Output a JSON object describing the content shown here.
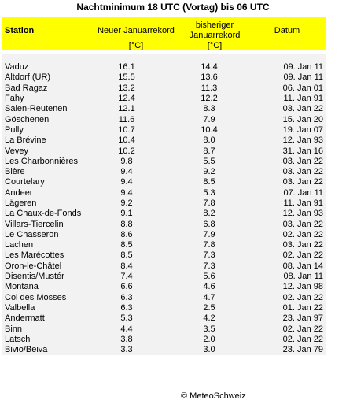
{
  "title": "Nachtminimum 18 UTC (Vortag) bis 06 UTC",
  "header": {
    "station": "Station",
    "new_record": "Neuer Januarrekord",
    "old_record_line1": "bisheriger",
    "old_record_line2": "Januarrekord",
    "date": "Datum",
    "unit_new": "[°C]",
    "unit_old": "[°C]"
  },
  "rows": [
    {
      "station": "Vaduz",
      "new": "16.1",
      "old": "14.4",
      "date": "09. Jan 11"
    },
    {
      "station": "Altdorf (UR)",
      "new": "15.5",
      "old": "13.6",
      "date": "09. Jan 11"
    },
    {
      "station": "Bad Ragaz",
      "new": "13.2",
      "old": "11.3",
      "date": "06. Jan 01"
    },
    {
      "station": "Fahy",
      "new": "12.4",
      "old": "12.2",
      "date": "11. Jan 91"
    },
    {
      "station": "Salen-Reutenen",
      "new": "12.1",
      "old": "8.3",
      "date": "03. Jan 22"
    },
    {
      "station": "Göschenen",
      "new": "11.6",
      "old": "7.9",
      "date": "15. Jan 20"
    },
    {
      "station": "Pully",
      "new": "10.7",
      "old": "10.4",
      "date": "19. Jan 07"
    },
    {
      "station": "La Brévine",
      "new": "10.4",
      "old": "8.0",
      "date": "12. Jan 93"
    },
    {
      "station": "Vevey",
      "new": "10.2",
      "old": "8.7",
      "date": "31. Jan 16"
    },
    {
      "station": "Les Charbonnières",
      "new": "9.8",
      "old": "5.5",
      "date": "03. Jan 22"
    },
    {
      "station": "Bière",
      "new": "9.4",
      "old": "9.2",
      "date": "03. Jan 22"
    },
    {
      "station": "Courtelary",
      "new": "9.4",
      "old": "8.5",
      "date": "03. Jan 22"
    },
    {
      "station": "Andeer",
      "new": "9.4",
      "old": "5.3",
      "date": "07. Jan 11"
    },
    {
      "station": "Lägeren",
      "new": "9.2",
      "old": "7.8",
      "date": "11. Jan 91"
    },
    {
      "station": "La Chaux-de-Fonds",
      "new": "9.1",
      "old": "8.2",
      "date": "12. Jan 93"
    },
    {
      "station": "Villars-Tiercelin",
      "new": "8.8",
      "old": "6.8",
      "date": "03. Jan 22"
    },
    {
      "station": "Le Chasseron",
      "new": "8.6",
      "old": "7.9",
      "date": "02. Jan 22"
    },
    {
      "station": "Lachen",
      "new": "8.5",
      "old": "7.8",
      "date": "03. Jan 22"
    },
    {
      "station": "Les Marécottes",
      "new": "8.5",
      "old": "7.3",
      "date": "02. Jan 22"
    },
    {
      "station": "Oron-le-Châtel",
      "new": "8.4",
      "old": "7.3",
      "date": "08. Jan 14"
    },
    {
      "station": "Disentis/Mustér",
      "new": "7.4",
      "old": "5.6",
      "date": "08. Jan 11"
    },
    {
      "station": "Montana",
      "new": "6.6",
      "old": "4.6",
      "date": "12. Jan 98"
    },
    {
      "station": "Col des Mosses",
      "new": "6.3",
      "old": "4.7",
      "date": "02. Jan 22"
    },
    {
      "station": "Valbella",
      "new": "6.3",
      "old": "2.5",
      "date": "01. Jan 22"
    },
    {
      "station": "Andermatt",
      "new": "5.3",
      "old": "4.2",
      "date": "23. Jan 97"
    },
    {
      "station": "Binn",
      "new": "4.4",
      "old": "3.5",
      "date": "02. Jan 22"
    },
    {
      "station": "Latsch",
      "new": "3.8",
      "old": "2.0",
      "date": "02. Jan 22"
    },
    {
      "station": "Bivio/Beiva",
      "new": "3.3",
      "old": "3.0",
      "date": "23. Jan 79"
    }
  ],
  "footer": "© MeteoSchweiz",
  "colors": {
    "header_bg": "#ffff00",
    "table_bg": "#f2f2f2"
  }
}
